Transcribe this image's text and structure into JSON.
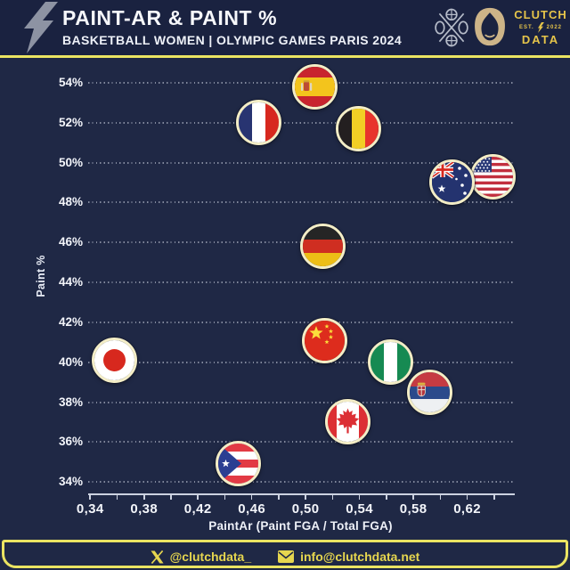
{
  "header": {
    "title": "PAINT-AR & PAINT %",
    "subtitle": "BASKETBALL WOMEN | OLYMPIC GAMES PARIS 2024",
    "brand": {
      "line1": "CLUTCH",
      "est_left": "EST.",
      "est_right": "2022",
      "line2": "DATA"
    },
    "icons": [
      "lightning-bolt-icon",
      "basketball-pictogram-icon",
      "paris-2024-flame-icon"
    ]
  },
  "footer": {
    "twitter_handle": "@clutchdata_",
    "email": "info@clutchdata.net"
  },
  "colors": {
    "background": "#1f2845",
    "header_background": "#1a2240",
    "accent_yellow_line": "#ebe462",
    "brand_gold": "#e5c44a",
    "text_white": "#f3f5fa",
    "flag_ring_cream": "#f3edc6",
    "gridline": "rgba(228,233,244,0.5)"
  },
  "chart_data": {
    "type": "scatter",
    "title": "PAINT-AR & PAINT %",
    "subtitle": "BASKETBALL WOMEN | OLYMPIC GAMES PARIS 2024",
    "xlabel": "PaintAr (Paint FGA / Total FGA)",
    "ylabel": "Paint %",
    "xlim": [
      0.3385,
      0.654
    ],
    "ylim": [
      33.45,
      54.35
    ],
    "x_major_ticks": [
      0.34,
      0.38,
      0.42,
      0.46,
      0.5,
      0.54,
      0.58,
      0.62
    ],
    "x_tick_labels": [
      "0,34",
      "0,38",
      "0,42",
      "0,46",
      "0,50",
      "0,54",
      "0,58",
      "0,62"
    ],
    "x_minor_tick_step": 0.02,
    "x_minor_tick_start": 0.34,
    "x_minor_tick_end": 0.64,
    "y_ticks": [
      54,
      52,
      50,
      48,
      46,
      44,
      42,
      40,
      38,
      36,
      34
    ],
    "y_tick_labels": [
      "54%",
      "52%",
      "50%",
      "48%",
      "46%",
      "44%",
      "42%",
      "40%",
      "38%",
      "36%",
      "34%"
    ],
    "grid": "horizontal-dotted",
    "legend": "none",
    "marker": "circular-country-flag",
    "points": [
      {
        "team": "Spain",
        "flag": "spain",
        "x": 0.507,
        "y": 53.8
      },
      {
        "team": "France",
        "flag": "france",
        "x": 0.465,
        "y": 52.0
      },
      {
        "team": "Belgium",
        "flag": "belgium",
        "x": 0.539,
        "y": 51.7
      },
      {
        "team": "USA",
        "flag": "usa",
        "x": 0.639,
        "y": 49.3
      },
      {
        "team": "Australia",
        "flag": "australia",
        "x": 0.609,
        "y": 49.0
      },
      {
        "team": "Germany",
        "flag": "germany",
        "x": 0.513,
        "y": 45.8
      },
      {
        "team": "China",
        "flag": "china",
        "x": 0.514,
        "y": 41.1
      },
      {
        "team": "Japan",
        "flag": "japan",
        "x": 0.358,
        "y": 40.1
      },
      {
        "team": "Nigeria",
        "flag": "nigeria",
        "x": 0.563,
        "y": 40.0
      },
      {
        "team": "Serbia",
        "flag": "serbia",
        "x": 0.592,
        "y": 38.5
      },
      {
        "team": "Canada",
        "flag": "canada",
        "x": 0.531,
        "y": 37.0
      },
      {
        "team": "Puerto Rico",
        "flag": "puertorico",
        "x": 0.45,
        "y": 34.9
      }
    ]
  }
}
